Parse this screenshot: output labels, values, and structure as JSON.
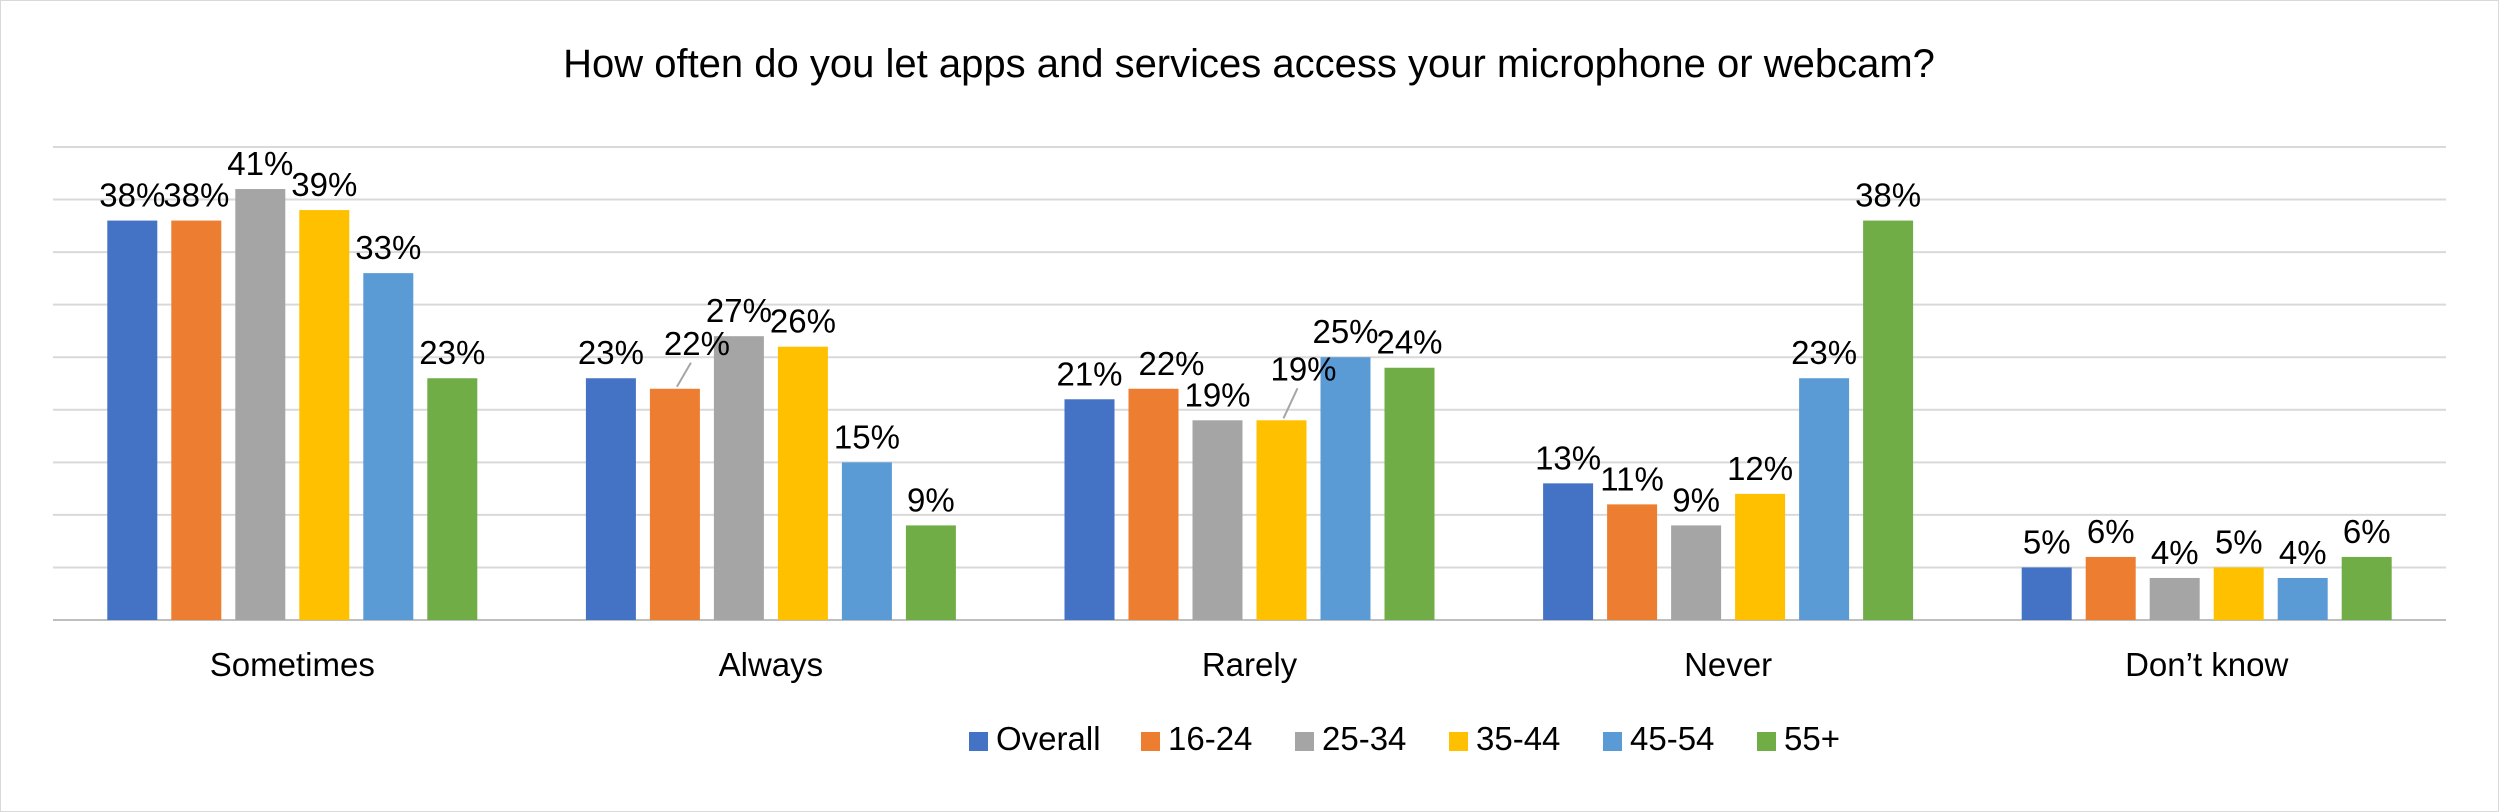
{
  "chart_data": {
    "type": "bar",
    "title": "How often do you let apps and services access your microphone or webcam?",
    "xlabel": "",
    "ylabel": "",
    "ylim": [
      0,
      45
    ],
    "grid": true,
    "legend_position": "bottom",
    "value_suffix": "%",
    "categories": [
      "Sometimes",
      "Always",
      "Rarely",
      "Never",
      "Don’t know"
    ],
    "series": [
      {
        "name": "Overall",
        "color": "#4472C4",
        "values": [
          38,
          23,
          21,
          13,
          5
        ]
      },
      {
        "name": "16-24",
        "color": "#ED7D31",
        "values": [
          38,
          22,
          22,
          11,
          6
        ]
      },
      {
        "name": "25-34",
        "color": "#A5A5A5",
        "values": [
          41,
          27,
          19,
          9,
          4
        ]
      },
      {
        "name": "35-44",
        "color": "#FFC000",
        "values": [
          39,
          26,
          19,
          12,
          5
        ]
      },
      {
        "name": "45-54",
        "color": "#5B9BD5",
        "values": [
          33,
          15,
          25,
          23,
          4
        ]
      },
      {
        "name": "55+",
        "color": "#70AD47",
        "values": [
          23,
          9,
          24,
          38,
          6
        ]
      }
    ]
  }
}
